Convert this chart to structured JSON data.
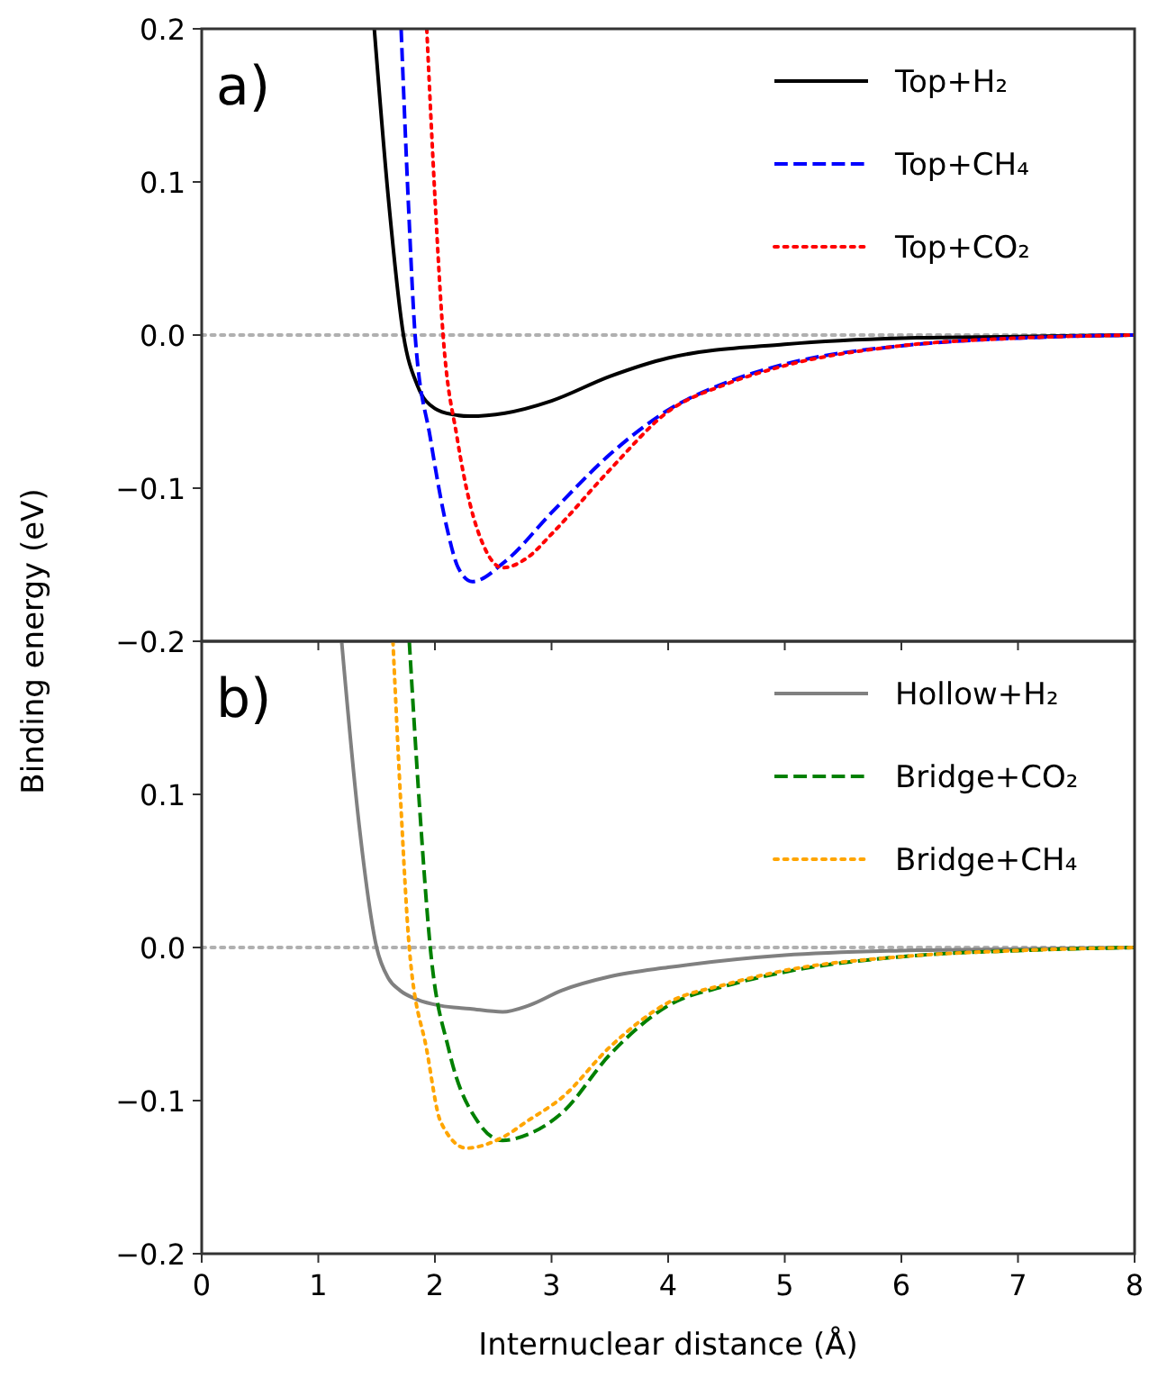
{
  "chart_data": [
    {
      "type": "line",
      "ylabel": "Binding energy (eV)",
      "annotations": [
        "a)"
      ],
      "xlim": [
        0,
        8
      ],
      "ylim": [
        -0.2,
        0.2
      ],
      "xticks": [
        0,
        1,
        2,
        3,
        4,
        5,
        6,
        7,
        8
      ],
      "yticks": [
        {
          "value": -0.2,
          "label": "−0.2"
        },
        {
          "value": -0.1,
          "label": "−0.1"
        },
        {
          "value": 0,
          "label": "0.0"
        },
        {
          "value": 0.1,
          "label": "0.1"
        },
        {
          "value": 0.2,
          "label": "0.2"
        }
      ],
      "tick_labels": "y",
      "legend": "top right",
      "grid": false,
      "ref_lines": [
        {
          "axis": "y",
          "value": 0,
          "color": "#b0b0b0",
          "line_style": "dotted"
        }
      ],
      "series": [
        {
          "name": "Top+H₂",
          "color": "#000000",
          "line_style": "solid",
          "x": [
            1.48,
            1.6,
            1.73,
            1.85,
            2.0,
            2.16,
            2.3,
            2.6,
            3.0,
            3.5,
            4.0,
            5.0,
            6.0,
            7.0,
            8.0
          ],
          "values": [
            0.2,
            0.09,
            0,
            -0.033,
            -0.048,
            -0.052,
            -0.053,
            -0.051,
            -0.043,
            -0.027,
            -0.015,
            -0.006,
            -0.002,
            -0.001,
            0
          ]
        },
        {
          "name": "Top+CH₄",
          "color": "#0000ff",
          "line_style": "dashed",
          "x": [
            1.71,
            1.77,
            1.83,
            1.96,
            2.1,
            2.2,
            2.32,
            2.6,
            3.0,
            3.5,
            4.0,
            4.5,
            5.0,
            6.0,
            7.0,
            8.0
          ],
          "values": [
            0.2,
            0.09,
            0,
            -0.067,
            -0.125,
            -0.152,
            -0.161,
            -0.148,
            -0.116,
            -0.078,
            -0.049,
            -0.031,
            -0.019,
            -0.007,
            -0.002,
            0
          ]
        },
        {
          "name": "Top+CO₂",
          "color": "#ff0000",
          "line_style": "dotted",
          "x": [
            1.93,
            2.0,
            2.07,
            2.19,
            2.3,
            2.42,
            2.58,
            2.8,
            3.0,
            3.5,
            4.0,
            4.5,
            5.0,
            6.0,
            7.0,
            8.0
          ],
          "values": [
            0.2,
            0.09,
            0,
            -0.067,
            -0.11,
            -0.138,
            -0.152,
            -0.145,
            -0.13,
            -0.088,
            -0.05,
            -0.032,
            -0.02,
            -0.007,
            -0.002,
            0
          ]
        }
      ]
    },
    {
      "type": "line",
      "xlabel": "Internuclear distance (Å)",
      "annotations": [
        "b)"
      ],
      "xlim": [
        0,
        8
      ],
      "ylim": [
        -0.2,
        0.2
      ],
      "xticks": [
        0,
        1,
        2,
        3,
        4,
        5,
        6,
        7,
        8
      ],
      "yticks": [
        {
          "value": -0.2,
          "label": "−0.2"
        },
        {
          "value": -0.1,
          "label": "−0.1"
        },
        {
          "value": 0,
          "label": "0.0"
        },
        {
          "value": 0.1,
          "label": "0.1"
        },
        {
          "value": 0.2,
          "label": null
        }
      ],
      "legend": "top right",
      "grid": false,
      "ref_lines": [
        {
          "axis": "y",
          "value": 0,
          "color": "#b0b0b0",
          "line_style": "dotted"
        }
      ],
      "series": [
        {
          "name": "Hollow+H₂",
          "color": "#808080",
          "line_style": "solid",
          "x": [
            1.2,
            1.35,
            1.5,
            1.6,
            1.7,
            1.85,
            2.05,
            2.3,
            2.58,
            2.8,
            3.09,
            3.5,
            4.0,
            5.0,
            6.0,
            7.0,
            8.0
          ],
          "values": [
            0.2,
            0.08,
            0,
            -0.02,
            -0.028,
            -0.034,
            -0.038,
            -0.04,
            -0.042,
            -0.038,
            -0.028,
            -0.019,
            -0.013,
            -0.005,
            -0.002,
            -0.001,
            0
          ]
        },
        {
          "name": "Bridge+CO₂",
          "color": "#008000",
          "line_style": "dashed",
          "x": [
            1.78,
            1.87,
            1.96,
            2.12,
            2.37,
            2.58,
            2.8,
            3.09,
            3.5,
            4.0,
            4.5,
            5.0,
            6.0,
            7.0,
            8.0
          ],
          "values": [
            0.2,
            0.09,
            0,
            -0.067,
            -0.114,
            -0.126,
            -0.122,
            -0.108,
            -0.07,
            -0.038,
            -0.025,
            -0.016,
            -0.006,
            -0.002,
            0
          ]
        },
        {
          "name": "Bridge+CH₄",
          "color": "#ffa500",
          "line_style": "dotted",
          "x": [
            1.64,
            1.71,
            1.78,
            1.93,
            2.05,
            2.27,
            2.58,
            2.8,
            3.09,
            3.5,
            4.0,
            4.5,
            5.0,
            6.0,
            7.0,
            8.0
          ],
          "values": [
            0.2,
            0.09,
            0,
            -0.067,
            -0.114,
            -0.131,
            -0.124,
            -0.113,
            -0.098,
            -0.065,
            -0.036,
            -0.024,
            -0.015,
            -0.006,
            -0.002,
            0
          ]
        }
      ]
    }
  ]
}
